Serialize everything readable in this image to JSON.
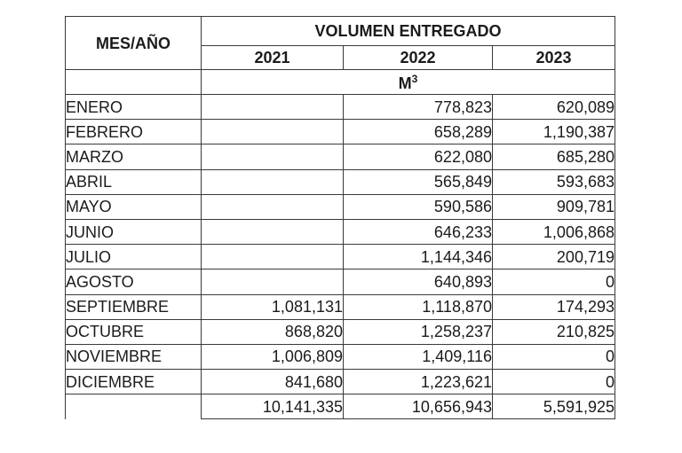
{
  "table": {
    "month_header": "MES/AÑO",
    "group_header": "VOLUMEN ENTREGADO",
    "years": [
      "2021",
      "2022",
      "2023"
    ],
    "unit": {
      "base": "M",
      "exponent": "3"
    },
    "rows": [
      {
        "month": "ENERO",
        "v2021": "",
        "v2022": "778,823",
        "v2023": "620,089"
      },
      {
        "month": "FEBRERO",
        "v2021": "",
        "v2022": "658,289",
        "v2023": "1,190,387"
      },
      {
        "month": "MARZO",
        "v2021": "",
        "v2022": "622,080",
        "v2023": "685,280"
      },
      {
        "month": "ABRIL",
        "v2021": "",
        "v2022": "565,849",
        "v2023": "593,683"
      },
      {
        "month": "MAYO",
        "v2021": "",
        "v2022": "590,586",
        "v2023": "909,781"
      },
      {
        "month": "JUNIO",
        "v2021": "",
        "v2022": "646,233",
        "v2023": "1,006,868"
      },
      {
        "month": "JULIO",
        "v2021": "",
        "v2022": "1,144,346",
        "v2023": "200,719"
      },
      {
        "month": "AGOSTO",
        "v2021": "",
        "v2022": "640,893",
        "v2023": "0"
      },
      {
        "month": "SEPTIEMBRE",
        "v2021": "1,081,131",
        "v2022": "1,118,870",
        "v2023": "174,293"
      },
      {
        "month": "OCTUBRE",
        "v2021": "868,820",
        "v2022": "1,258,237",
        "v2023": "210,825"
      },
      {
        "month": "NOVIEMBRE",
        "v2021": "1,006,809",
        "v2022": "1,409,116",
        "v2023": "0"
      },
      {
        "month": "DICIEMBRE",
        "v2021": "841,680",
        "v2022": "1,223,621",
        "v2023": "0"
      }
    ],
    "totals": {
      "v2021": "10,141,335",
      "v2022": "10,656,943",
      "v2023": "5,591,925"
    }
  }
}
